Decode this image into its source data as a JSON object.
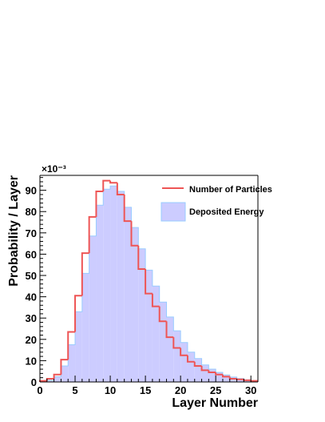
{
  "chart_data": {
    "type": "histogram",
    "xlabel": "Layer Number",
    "ylabel": "Probability / Layer",
    "y_exponent": "×10⁻³",
    "xlim": [
      0,
      31
    ],
    "ylim": [
      0,
      97
    ],
    "x_ticks": [
      "0",
      "5",
      "10",
      "15",
      "20",
      "25",
      "30"
    ],
    "y_ticks": [
      "0",
      "10",
      "20",
      "30",
      "40",
      "50",
      "60",
      "70",
      "80",
      "90"
    ],
    "bin_edges": [
      0,
      1,
      2,
      3,
      4,
      5,
      6,
      7,
      8,
      9,
      10,
      11,
      12,
      13,
      14,
      15,
      16,
      17,
      18,
      19,
      20,
      21,
      22,
      23,
      24,
      25,
      26,
      27,
      28,
      29,
      30,
      31
    ],
    "legend": {
      "position": "top-right"
    },
    "series": [
      {
        "name": "Number of Particles",
        "style": "step-line",
        "color": "#ee5555",
        "values": [
          0.5,
          1.5,
          3.5,
          10.5,
          23.5,
          40.5,
          60.5,
          77.5,
          89.5,
          94.5,
          93.5,
          88,
          75.5,
          64,
          53,
          41.5,
          35.5,
          28.5,
          21,
          16,
          12.5,
          9.5,
          7.5,
          5.5,
          4.5,
          3.5,
          2.5,
          1.5,
          1.2,
          0.8,
          0.5
        ]
      },
      {
        "name": "Deposited Energy",
        "style": "filled",
        "color": "#ccccff",
        "edge_color": "#99ccff",
        "values": [
          0.3,
          0.8,
          2.5,
          7.5,
          17.5,
          33,
          51,
          68.5,
          83,
          90.5,
          92,
          89.5,
          82,
          72.5,
          62.5,
          52.5,
          45,
          37.5,
          30.5,
          24,
          18.5,
          14,
          11,
          8,
          6,
          4.5,
          3.3,
          2.3,
          1.6,
          1,
          0.5
        ]
      }
    ]
  }
}
